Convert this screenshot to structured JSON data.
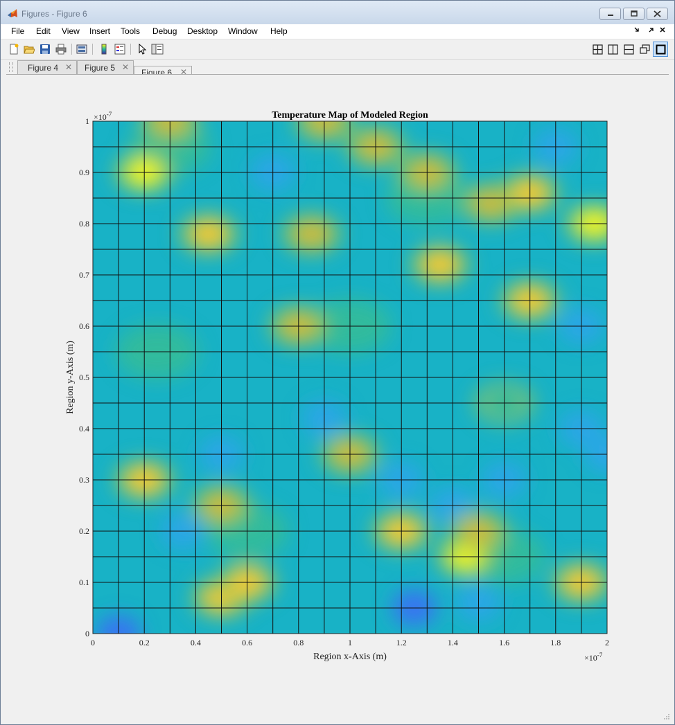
{
  "window": {
    "title": "Figures - Figure 6",
    "controls": [
      "minimize",
      "restore",
      "close"
    ]
  },
  "menu": [
    "File",
    "Edit",
    "View",
    "Insert",
    "Tools",
    "Debug",
    "Desktop",
    "Window",
    "Help"
  ],
  "toolbar_icons": [
    "new-figure-icon",
    "open-file-icon",
    "save-icon",
    "print-icon",
    "print-preview-icon",
    "colorbar-icon",
    "legend-icon",
    "pointer-icon",
    "property-editor-icon"
  ],
  "layout_icons": [
    "tile-grid-icon",
    "left-right-split-icon",
    "top-bottom-split-icon",
    "float-icon",
    "maximize-icon"
  ],
  "tabs": [
    {
      "label": "Figure 4",
      "active": false
    },
    {
      "label": "Figure 5",
      "active": false
    },
    {
      "label": "Figure 6",
      "active": true
    }
  ],
  "chart_data": {
    "type": "heatmap",
    "title": "Temperature Map of Modeled Region",
    "xlabel": "Region x-Axis (m)",
    "ylabel": "Region y-Axis (m)",
    "x_exponent": "×10",
    "x_exponent_power": "-7",
    "y_exponent": "×10",
    "y_exponent_power": "-7",
    "x_ticks": [
      "0",
      "0.2",
      "0.4",
      "0.6",
      "0.8",
      "1",
      "1.2",
      "1.4",
      "1.6",
      "1.8",
      "2"
    ],
    "y_ticks": [
      "0",
      "0.1",
      "0.2",
      "0.3",
      "0.4",
      "0.5",
      "0.6",
      "0.7",
      "0.8",
      "0.9",
      "1"
    ],
    "xlim": [
      0,
      2e-07
    ],
    "ylim": [
      0,
      1e-07
    ],
    "grid_x_step": 1e-08,
    "grid_y_step": 5e-09,
    "colormap": [
      "#3e26a8",
      "#3a6ef5",
      "#2ea5e9",
      "#15b8c0",
      "#22bba0",
      "#80c35e",
      "#d3bb3a",
      "#fcca2e",
      "#f9fb15"
    ],
    "hot_spots": [
      {
        "x": 2e-08,
        "y": 9e-08,
        "level": 0.95
      },
      {
        "x": 4.5e-08,
        "y": 7.8e-08,
        "level": 0.9
      },
      {
        "x": 8.5e-08,
        "y": 7.8e-08,
        "level": 0.75
      },
      {
        "x": 9e-08,
        "y": 1e-07,
        "level": 0.8
      },
      {
        "x": 1.1e-07,
        "y": 9.5e-08,
        "level": 0.7
      },
      {
        "x": 1.35e-07,
        "y": 7.2e-08,
        "level": 0.9
      },
      {
        "x": 1.3e-07,
        "y": 9e-08,
        "level": 0.7
      },
      {
        "x": 1.55e-07,
        "y": 8.4e-08,
        "level": 0.8
      },
      {
        "x": 1.7e-07,
        "y": 8.6e-08,
        "level": 0.9
      },
      {
        "x": 1.95e-07,
        "y": 8e-08,
        "level": 0.95
      },
      {
        "x": 1.7e-07,
        "y": 6.5e-08,
        "level": 0.85
      },
      {
        "x": 8e-08,
        "y": 6e-08,
        "level": 0.75
      },
      {
        "x": 2e-08,
        "y": 3e-08,
        "level": 0.85
      },
      {
        "x": 5e-08,
        "y": 2.5e-08,
        "level": 0.75
      },
      {
        "x": 1e-07,
        "y": 3.5e-08,
        "level": 0.8
      },
      {
        "x": 5e-08,
        "y": 7e-09,
        "level": 0.9
      },
      {
        "x": 6e-08,
        "y": 1e-08,
        "level": 0.85
      },
      {
        "x": 1.2e-07,
        "y": 2e-08,
        "level": 0.85
      },
      {
        "x": 1.45e-07,
        "y": 1.5e-08,
        "level": 0.95
      },
      {
        "x": 1.5e-07,
        "y": 2e-08,
        "level": 0.8
      },
      {
        "x": 1.9e-07,
        "y": 1e-08,
        "level": 0.85
      },
      {
        "x": 3e-08,
        "y": 1e-07,
        "level": 0.7
      },
      {
        "x": 1.6e-07,
        "y": 4.5e-08,
        "level": 0.55
      }
    ],
    "cold_spots": [
      {
        "x": 1e-08,
        "y": 0.0,
        "level": 0.0
      },
      {
        "x": 5e-08,
        "y": 3.5e-08,
        "level": 0.1
      },
      {
        "x": 1.2e-07,
        "y": 3e-08,
        "level": 0.1
      },
      {
        "x": 1.4e-07,
        "y": 2.5e-08,
        "level": 0.1
      },
      {
        "x": 1.25e-07,
        "y": 5e-09,
        "level": 0.05
      },
      {
        "x": 1.8e-07,
        "y": 9.5e-08,
        "level": 0.1
      },
      {
        "x": 1.9e-07,
        "y": 6e-08,
        "level": 0.2
      },
      {
        "x": 7e-08,
        "y": 9e-08,
        "level": 0.15
      },
      {
        "x": 9e-08,
        "y": 4.2e-08,
        "level": 0.15
      },
      {
        "x": 1.6e-07,
        "y": 3e-08,
        "level": 0.15
      },
      {
        "x": 2e-07,
        "y": 3.5e-08,
        "level": 0.15
      },
      {
        "x": 3.5e-08,
        "y": 2e-08,
        "level": 0.2
      },
      {
        "x": 1.5e-07,
        "y": 6e-09,
        "level": 0.15
      },
      {
        "x": 1.9e-07,
        "y": 4e-08,
        "level": 0.2
      }
    ]
  }
}
